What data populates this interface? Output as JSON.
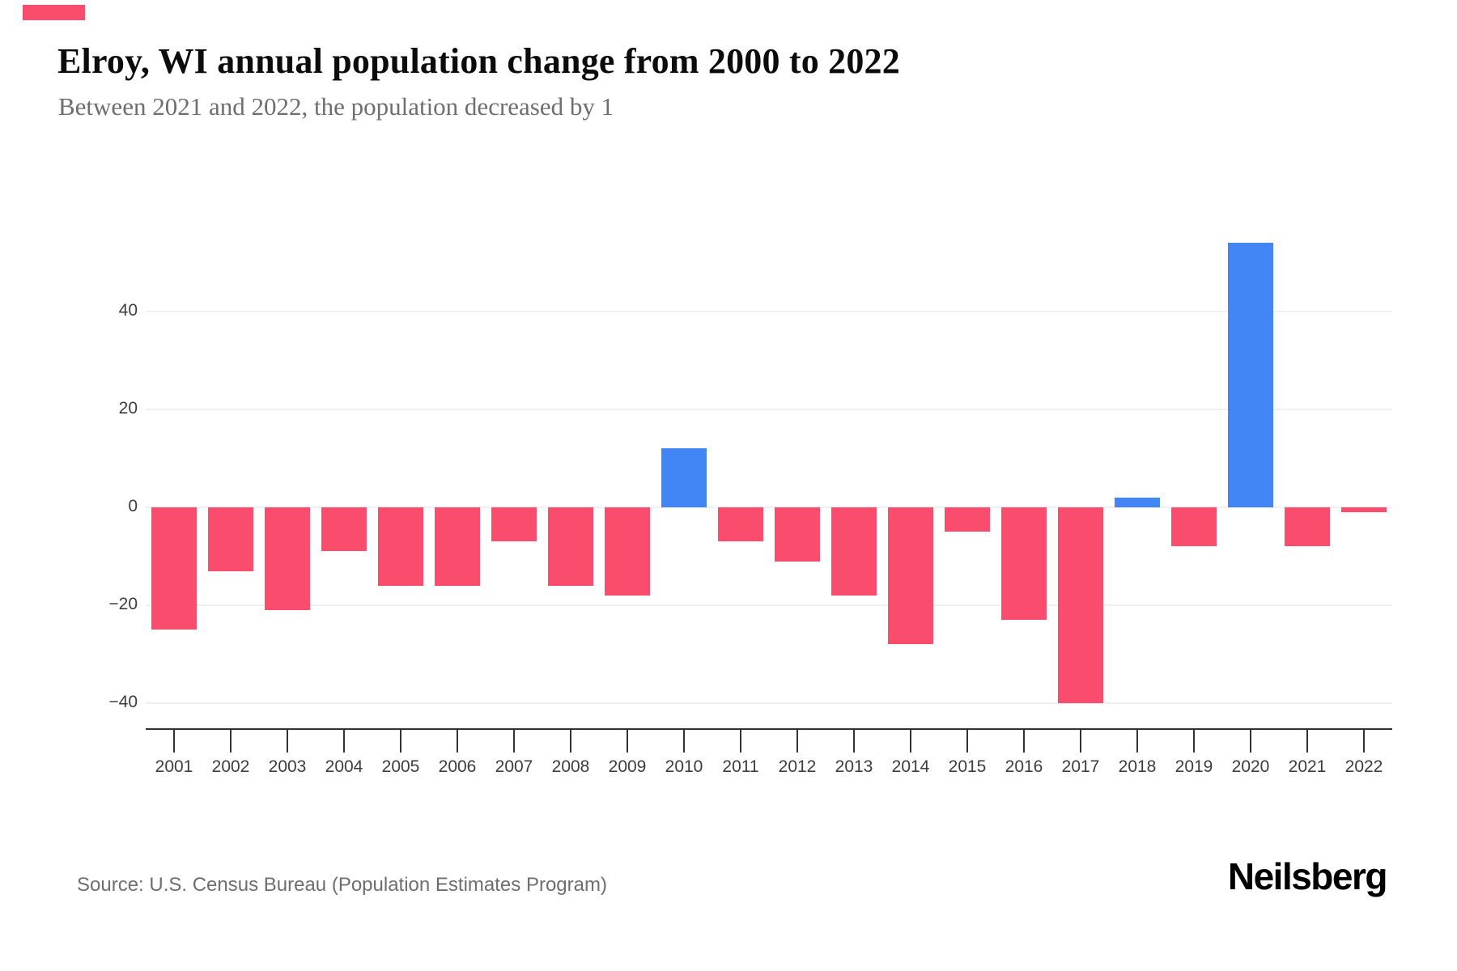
{
  "header": {
    "title": "Elroy, WI annual population change from 2000 to 2022",
    "subtitle": "Between 2021 and 2022, the population decreased by 1"
  },
  "footer": {
    "source": "Source: U.S. Census Bureau (Population Estimates Program)",
    "logo": "Neilsberg"
  },
  "colors": {
    "positive": "#4285F4",
    "negative": "#FA4D6D",
    "brand_accent": "#FA4D6D",
    "gridline": "#F0F0F1",
    "axis": "#333333",
    "tick_label": "#3D3D3D"
  },
  "chart_data": {
    "type": "bar",
    "title": "Elroy, WI annual population change from 2000 to 2022",
    "subtitle": "Between 2021 and 2022, the population decreased by 1",
    "categories": [
      "2001",
      "2002",
      "2003",
      "2004",
      "2005",
      "2006",
      "2007",
      "2008",
      "2009",
      "2010",
      "2011",
      "2012",
      "2013",
      "2014",
      "2015",
      "2016",
      "2017",
      "2018",
      "2019",
      "2020",
      "2021",
      "2022"
    ],
    "values": [
      -25,
      -13,
      -21,
      -9,
      -16,
      -16,
      -7,
      -16,
      -18,
      12,
      -7,
      -11,
      -18,
      -28,
      -5,
      -23,
      -40,
      2,
      -8,
      54,
      -8,
      -1
    ],
    "xlabel": "",
    "ylabel": "",
    "yticks": [
      40,
      20,
      0,
      -20,
      -40
    ],
    "ylim": [
      -46,
      56
    ],
    "grid": "horizontal",
    "legend": "none",
    "positive_color": "#4285F4",
    "negative_color": "#FA4D6D"
  }
}
